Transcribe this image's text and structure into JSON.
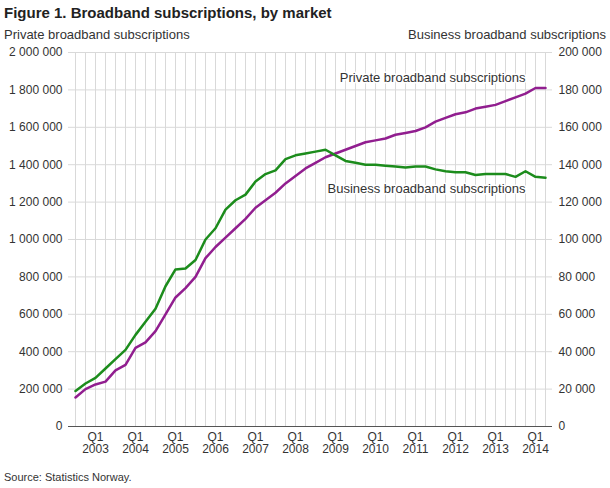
{
  "chart_data": {
    "type": "line",
    "title": "Figure 1. Broadband subscriptions, by market",
    "ylabel": "Private broadband subscriptions",
    "y2label": "Business broadband subscriptions",
    "source": "Source: Statistics Norway.",
    "categories": [
      null,
      null,
      "Q1\n2003",
      null,
      null,
      null,
      "Q1\n2004",
      null,
      null,
      null,
      "Q1\n2005",
      null,
      null,
      null,
      "Q1\n2006",
      null,
      null,
      null,
      "Q1\n2007",
      null,
      null,
      null,
      "Q1\n2008",
      null,
      null,
      null,
      "Q1\n2009",
      null,
      null,
      null,
      "Q1\n2010",
      null,
      null,
      null,
      "Q1\n2011",
      null,
      null,
      null,
      "Q1\n2012",
      null,
      null,
      null,
      "Q1\n2013",
      null,
      null,
      null,
      "Q1\n2014",
      null
    ],
    "series": [
      {
        "name": "Private broadband subscriptions",
        "color": "#911e8f",
        "values": [
          155000,
          200000,
          225000,
          240000,
          300000,
          330000,
          420000,
          450000,
          510000,
          600000,
          690000,
          740000,
          800000,
          900000,
          960000,
          1010000,
          1060000,
          1110000,
          1170000,
          1210000,
          1250000,
          1300000,
          1340000,
          1380000,
          1410000,
          1440000,
          1460000,
          1480000,
          1500000,
          1520000,
          1530000,
          1540000,
          1560000,
          1570000,
          1580000,
          1600000,
          1630000,
          1650000,
          1670000,
          1680000,
          1700000,
          1710000,
          1720000,
          1740000,
          1760000,
          1780000,
          1810000,
          1810000
        ]
      },
      {
        "name": "Business broadband subscriptions",
        "color": "#1c8c1c",
        "axis": "y2",
        "values": [
          19000,
          23000,
          26000,
          31000,
          36000,
          41000,
          49000,
          56000,
          63000,
          75000,
          84000,
          84500,
          89000,
          100000,
          106000,
          116000,
          121000,
          124000,
          131000,
          135000,
          137000,
          143000,
          145000,
          146000,
          147000,
          148000,
          145000,
          142000,
          141000,
          140000,
          140000,
          139500,
          139000,
          138500,
          139000,
          139000,
          137500,
          136500,
          136000,
          136000,
          134500,
          135000,
          135000,
          135000,
          133500,
          136500,
          133500,
          133000
        ]
      }
    ],
    "ylim": [
      0,
      2000000
    ],
    "yticks": [
      0,
      {
        "value": 200000,
        "label": "200 000"
      },
      {
        "value": 400000,
        "label": "400 000"
      },
      {
        "value": 600000,
        "label": "600 000"
      },
      {
        "value": 800000,
        "label": "800 000"
      },
      {
        "value": 1000000,
        "label": "1 000 000"
      },
      {
        "value": 1200000,
        "label": "1 200 000"
      },
      {
        "value": 1400000,
        "label": "1 400 000"
      },
      {
        "value": 1600000,
        "label": "1 600 000"
      },
      {
        "value": 1800000,
        "label": "1 800 000"
      },
      {
        "value": 2000000,
        "label": "2 000 000"
      }
    ],
    "y2lim": [
      0,
      200000
    ],
    "y2ticks": [
      0,
      {
        "value": 20000,
        "label": "20 000"
      },
      {
        "value": 40000,
        "label": "40 000"
      },
      {
        "value": 60000,
        "label": "60 000"
      },
      {
        "value": 80000,
        "label": "80 000"
      },
      {
        "value": 100000,
        "label": "100 000"
      },
      {
        "value": 120000,
        "label": "120 000"
      },
      {
        "value": 140000,
        "label": "140 000"
      },
      {
        "value": 160000,
        "label": "160 000"
      },
      {
        "value": 180000,
        "label": "180 000"
      },
      {
        "value": 200000,
        "label": "200 000"
      }
    ],
    "grid": true
  }
}
